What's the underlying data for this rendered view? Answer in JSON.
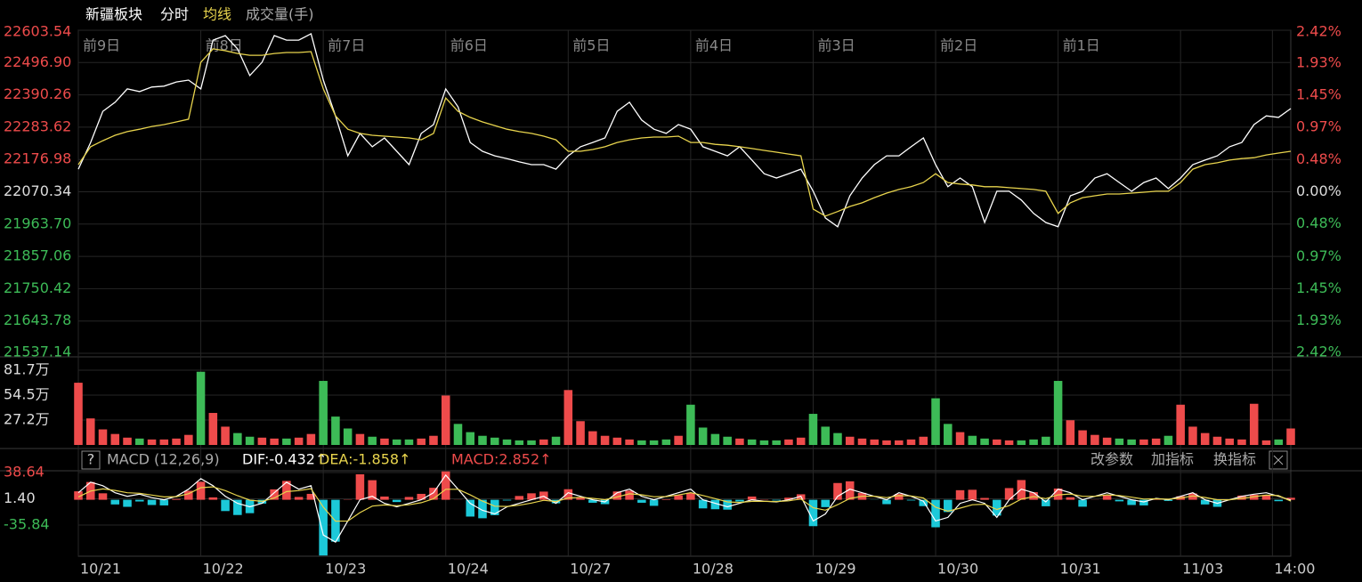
{
  "chart_data": [
    {
      "type": "line",
      "title": "新疆板块",
      "x": [
        0,
        1,
        2,
        3,
        4,
        5,
        6,
        7,
        8,
        9,
        10,
        11,
        12,
        13,
        14,
        15,
        16,
        17,
        18,
        19,
        20,
        21,
        22,
        23,
        24,
        25,
        26,
        27,
        28,
        29,
        30,
        31,
        32,
        33,
        34,
        35,
        36,
        37,
        38,
        39,
        40,
        41,
        42,
        43,
        44,
        45,
        46,
        47,
        48,
        49,
        50,
        51,
        52,
        53,
        54,
        55,
        56,
        57,
        58,
        59,
        60,
        61,
        62,
        63,
        64,
        65,
        66,
        67,
        68,
        69,
        70,
        71,
        72,
        73,
        74,
        75,
        76,
        77,
        78,
        79,
        80,
        81,
        82,
        83,
        84,
        85,
        86,
        87,
        88,
        89,
        90,
        91,
        92,
        93,
        94,
        95,
        96,
        97,
        98,
        99
      ],
      "xlim": [
        0,
        99
      ],
      "xticks": [
        {
          "value": 0,
          "label": "10/21"
        },
        {
          "value": 10,
          "label": "10/22"
        },
        {
          "value": 20,
          "label": "10/23"
        },
        {
          "value": 30,
          "label": "10/24"
        },
        {
          "value": 40,
          "label": "10/27"
        },
        {
          "value": 50,
          "label": "10/28"
        },
        {
          "value": 60,
          "label": "10/29"
        },
        {
          "value": 70,
          "label": "10/30"
        },
        {
          "value": 80,
          "label": "10/31"
        },
        {
          "value": 90,
          "label": "11/03"
        },
        {
          "value": 97.5,
          "label": "14:00"
        }
      ],
      "x2ticks": [
        {
          "value": 0,
          "label": "前9日"
        },
        {
          "value": 10,
          "label": "前8日"
        },
        {
          "value": 20,
          "label": "前7日"
        },
        {
          "value": 30,
          "label": "前6日"
        },
        {
          "value": 40,
          "label": "前5日"
        },
        {
          "value": 50,
          "label": "前4日"
        },
        {
          "value": 60,
          "label": "前3日"
        },
        {
          "value": 70,
          "label": "前2日"
        },
        {
          "value": 80,
          "label": "前1日"
        }
      ],
      "ylim": [
        21537.14,
        22603.54
      ],
      "yticks": [
        22603.54,
        {
          "value": 22496.9,
          "label": "22496.90"
        },
        22390.26,
        22283.62,
        22176.98,
        22070.34,
        {
          "value": 21963.7,
          "label": "21963.70"
        },
        21857.06,
        21750.42,
        21643.78,
        21537.14
      ],
      "y2lim": [
        -2.42,
        2.42
      ],
      "y2ticks": [
        {
          "value": 2.42,
          "label": "2.42%"
        },
        {
          "value": 1.93,
          "label": "1.93%"
        },
        {
          "value": 1.45,
          "label": "1.45%"
        },
        {
          "value": 0.97,
          "label": "0.97%"
        },
        {
          "value": 0.48,
          "label": "0.48%"
        },
        {
          "value": 0,
          "label": "0.00%"
        },
        {
          "value": -0.48,
          "label": "0.48%"
        },
        {
          "value": -0.97,
          "label": "0.97%"
        },
        {
          "value": -1.45,
          "label": "1.45%"
        },
        {
          "value": -1.93,
          "label": "1.93%"
        },
        {
          "value": -2.42,
          "label": "2.42%"
        }
      ],
      "grid": true,
      "series": [
        {
          "name": "分时",
          "color": "#ffffff",
          "values": [
            22145,
            22233,
            22336,
            22366,
            22410,
            22401,
            22416,
            22419,
            22433,
            22439,
            22410,
            22571,
            22586,
            22542,
            22454,
            22498,
            22586,
            22571,
            22571,
            22592,
            22439,
            22321,
            22189,
            22263,
            22219,
            22248,
            22204,
            22160,
            22263,
            22292,
            22410,
            22351,
            22233,
            22204,
            22189,
            22180,
            22169,
            22160,
            22160,
            22145,
            22189,
            22219,
            22233,
            22248,
            22336,
            22366,
            22307,
            22277,
            22263,
            22292,
            22277,
            22219,
            22204,
            22189,
            22219,
            22175,
            22130,
            22116,
            22130,
            22145,
            22072,
            21984,
            21955,
            22057,
            22116,
            22160,
            22189,
            22189,
            22219,
            22248,
            22160,
            22087,
            22116,
            22087,
            21969,
            22072,
            22072,
            22043,
            21999,
            21969,
            21955,
            22057,
            22072,
            22116,
            22130,
            22101,
            22072,
            22101,
            22116,
            22081,
            22116,
            22160,
            22175,
            22189,
            22219,
            22233,
            22292,
            22321,
            22316,
            22345
          ]
        },
        {
          "name": "均线",
          "color": "#e8d44d",
          "values": [
            22160,
            22219,
            22239,
            22257,
            22269,
            22277,
            22286,
            22292,
            22301,
            22310,
            22498,
            22542,
            22536,
            22527,
            22521,
            22521,
            22527,
            22530,
            22530,
            22533,
            22410,
            22321,
            22277,
            22263,
            22257,
            22254,
            22251,
            22248,
            22242,
            22263,
            22380,
            22336,
            22316,
            22301,
            22289,
            22277,
            22269,
            22263,
            22254,
            22242,
            22204,
            22204,
            22210,
            22219,
            22233,
            22242,
            22248,
            22251,
            22251,
            22254,
            22233,
            22233,
            22227,
            22224,
            22219,
            22213,
            22207,
            22201,
            22195,
            22189,
            22013,
            21990,
            22005,
            22022,
            22034,
            22051,
            22066,
            22078,
            22087,
            22101,
            22130,
            22101,
            22096,
            22093,
            22087,
            22087,
            22084,
            22081,
            22078,
            22072,
            21999,
            22034,
            22051,
            22057,
            22063,
            22063,
            22066,
            22069,
            22072,
            22072,
            22101,
            22145,
            22160,
            22166,
            22175,
            22180,
            22183,
            22192,
            22198,
            22204
          ]
        }
      ]
    },
    {
      "type": "bar",
      "title": "成交量(手)",
      "up_color": "#ee4b4b",
      "down_color": "#3dbb57",
      "ylim": [
        0,
        817000
      ],
      "yticks": [
        {
          "value": 817000,
          "label": "81.7万"
        },
        {
          "value": 545000,
          "label": "54.5万"
        },
        {
          "value": 272000,
          "label": "27.2万"
        }
      ],
      "values": [
        680000,
        290000,
        170000,
        120000,
        80000,
        70000,
        60000,
        60000,
        70000,
        110000,
        800000,
        350000,
        200000,
        130000,
        90000,
        80000,
        70000,
        70000,
        80000,
        120000,
        700000,
        310000,
        180000,
        120000,
        90000,
        70000,
        60000,
        60000,
        70000,
        100000,
        540000,
        230000,
        140000,
        100000,
        80000,
        60000,
        50000,
        50000,
        60000,
        90000,
        600000,
        260000,
        150000,
        100000,
        80000,
        60000,
        50000,
        50000,
        60000,
        100000,
        440000,
        190000,
        120000,
        90000,
        70000,
        60000,
        50000,
        50000,
        60000,
        80000,
        340000,
        200000,
        130000,
        90000,
        70000,
        60000,
        50000,
        50000,
        60000,
        90000,
        510000,
        230000,
        140000,
        100000,
        70000,
        60000,
        50000,
        50000,
        60000,
        90000,
        700000,
        270000,
        160000,
        110000,
        80000,
        70000,
        60000,
        60000,
        70000,
        100000,
        440000,
        200000,
        130000,
        90000,
        70000,
        60000,
        450000,
        50000,
        60000,
        180000
      ]
    },
    {
      "type": "macd",
      "title": "MACD (12,26,9)",
      "ylim": [
        -80,
        50
      ],
      "yticks": [
        38.64,
        {
          "value": 1.4,
          "label": "1.40"
        },
        -35.84
      ],
      "series": [
        {
          "name": "DIF:-0.432↑",
          "color": "#ffffff",
          "values": [
            10,
            25,
            20,
            10,
            5,
            8,
            3,
            0,
            5,
            15,
            30,
            20,
            5,
            -5,
            -10,
            -5,
            10,
            25,
            15,
            20,
            -50,
            -60,
            -30,
            0,
            5,
            -5,
            -10,
            -5,
            0,
            10,
            35,
            15,
            -5,
            -15,
            -20,
            -10,
            -5,
            0,
            5,
            -5,
            10,
            5,
            0,
            -3,
            10,
            15,
            5,
            0,
            5,
            10,
            15,
            0,
            -5,
            -10,
            -5,
            0,
            -2,
            -3,
            0,
            5,
            -30,
            -20,
            5,
            15,
            10,
            5,
            0,
            10,
            5,
            -2,
            -30,
            -25,
            -5,
            0,
            -5,
            -25,
            0,
            15,
            10,
            -3,
            15,
            10,
            0,
            5,
            10,
            5,
            0,
            -3,
            2,
            0,
            5,
            10,
            0,
            -5,
            0,
            5,
            8,
            10,
            5,
            -0.432
          ]
        },
        {
          "name": "DEA:-1.858↑",
          "color": "#e8d44d",
          "values": [
            4,
            12.4,
            15.4,
            13.3,
            10,
            9.2,
            6.7,
            4,
            4.4,
            8.6,
            17.2,
            18.3,
            13,
            5.8,
            -0.5,
            -2.3,
            2.6,
            11.6,
            13,
            15.8,
            -10.5,
            -30.3,
            -30.2,
            -18.1,
            -8.9,
            -7.3,
            -8.4,
            -7,
            -4.2,
            1.5,
            14.9,
            14.9,
            6.9,
            -1.9,
            -9.1,
            -9.5,
            -7.7,
            -4.6,
            -0.8,
            -2.5,
            2.5,
            3.5,
            2.1,
            0.1,
            4.1,
            8.5,
            7.1,
            4.3,
            4.6,
            6.8,
            10.1,
            6.1,
            1.7,
            -3,
            -3.8,
            -2.3,
            -2.2,
            -2.5,
            -1.5,
            1.1,
            -11.3,
            -14.8,
            -6.9,
            1.9,
            5.1,
            5.1,
            3.1,
            5.9,
            5.5,
            2.5,
            -10.5,
            -16.3,
            -11.8,
            -7.1,
            -6.3,
            -13.8,
            -8.3,
            1,
            4.6,
            1.6,
            7,
            8.2,
            4.9,
            4.9,
            6.9,
            6.1,
            3.7,
            1,
            1.4,
            0.8,
            2.5,
            5.5,
            3.3,
            0,
            0,
            2,
            4.4,
            6.6,
            6,
            -1.858
          ]
        },
        {
          "name": "MACD:2.852↑",
          "color": "#ee4b4b",
          "down_color": "#1cc9d9",
          "values": [
            12,
            25.2,
            9.2,
            -6.6,
            -10,
            -2.4,
            -7.4,
            -8,
            1.2,
            12.8,
            25.6,
            3.4,
            -16,
            -21.6,
            -19,
            -5.4,
            14.8,
            26.8,
            4,
            8.4,
            -79,
            -59.4,
            0.4,
            36.2,
            27.8,
            4.6,
            -3.2,
            4,
            8.4,
            17,
            40.2,
            0.2,
            -23.8,
            -26.2,
            -21.8,
            -1,
            5.4,
            9.2,
            11.6,
            -5,
            15,
            3,
            -4.2,
            -6.2,
            11.8,
            13,
            -4.2,
            -8.6,
            0.8,
            6.4,
            9.8,
            -12.2,
            -13.4,
            -14,
            -2.4,
            4.6,
            0.4,
            -1,
            3,
            7.8,
            -37.4,
            -10.4,
            23.8,
            26.2,
            9.8,
            -0.2,
            -6.2,
            8.2,
            -1,
            -9,
            -39,
            -17.4,
            13.6,
            14.2,
            2.6,
            -22.4,
            16.6,
            28,
            10.8,
            -9.2,
            16,
            3.6,
            -9.8,
            0.2,
            6.2,
            -2.2,
            -7.4,
            -8,
            1.2,
            -1.6,
            5,
            9,
            -6.6,
            -10,
            0,
            6,
            7.2,
            6.8,
            -2,
            2.852
          ]
        }
      ]
    }
  ],
  "toolbar": {
    "help": "?",
    "buttons": [
      "改参数",
      "加指标",
      "换指标"
    ]
  }
}
